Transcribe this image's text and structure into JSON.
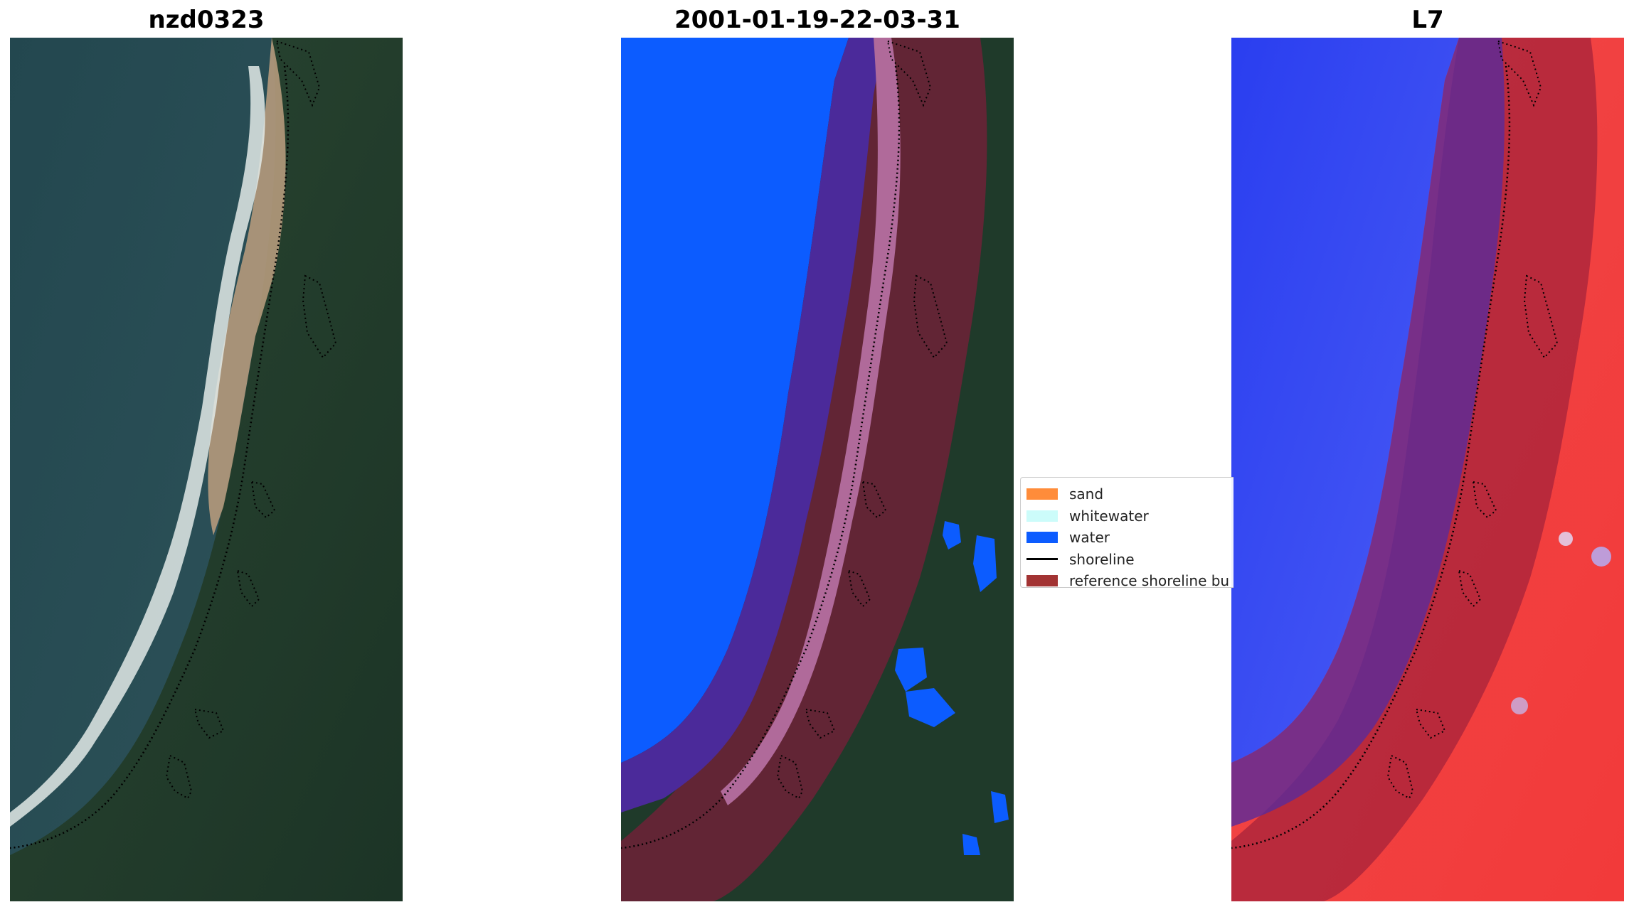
{
  "titles": {
    "left": "nzd0323",
    "center": "2001-01-19-22-03-31",
    "right": "L7"
  },
  "legend": {
    "items": [
      {
        "label": "sand",
        "color": "#ff8c3a",
        "kind": "patch"
      },
      {
        "label": "whitewater",
        "color": "#ccfcfa",
        "kind": "patch"
      },
      {
        "label": "water",
        "color": "#0c5cff",
        "kind": "patch"
      },
      {
        "label": "shoreline",
        "color": "#000000",
        "kind": "line"
      },
      {
        "label": "reference shoreline bu",
        "color": "#a23333",
        "kind": "patch"
      }
    ]
  },
  "colors": {
    "water_rgb": "#27484f",
    "land_rgb": "#1f3a2a",
    "surf": "#e4ecea",
    "beach": "#c9a98a",
    "classified_water": "#0c5cff",
    "buffer": "#7a1f3a",
    "index_water": "#2030e0",
    "index_land": "#f03030"
  }
}
